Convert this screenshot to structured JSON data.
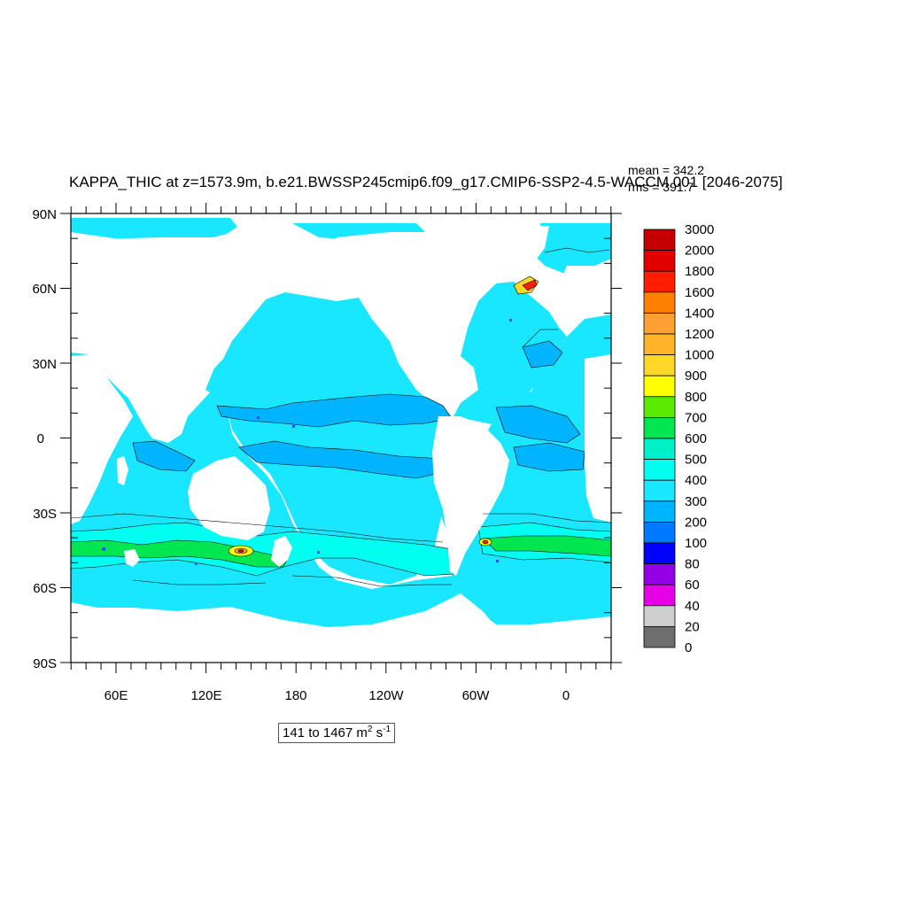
{
  "title": "KAPPA_THIC at z=1573.9m, b.e21.BWSSP245cmip6.f09_g17.CMIP6-SSP2-4.5-WACCM.001 [2046-2075]",
  "stats": {
    "mean": "mean = 342.2",
    "rms": "rms = 391.7"
  },
  "axes": {
    "lat_labels": [
      "90N",
      "60N",
      "30N",
      "0",
      "30S",
      "60S",
      "90S"
    ],
    "lon_labels": [
      "60E",
      "120E",
      "180",
      "120W",
      "60W",
      "0"
    ]
  },
  "range": {
    "text": "141 to 1467 m",
    "unit_sup_1": "2",
    "unit_mid": " s",
    "unit_sup_2": "-1"
  },
  "colorbar": {
    "labels": [
      "3000",
      "2000",
      "1800",
      "1600",
      "1400",
      "1200",
      "1000",
      "900",
      "800",
      "700",
      "600",
      "500",
      "400",
      "300",
      "200",
      "100",
      "80",
      "60",
      "40",
      "20",
      "0"
    ],
    "colors": [
      "#c40000",
      "#e10000",
      "#ff1e00",
      "#ff8000",
      "#ffa032",
      "#ffb428",
      "#ffd728",
      "#ffff00",
      "#5aeb00",
      "#00e650",
      "#00f0c8",
      "#00fff0",
      "#19e6ff",
      "#00b4ff",
      "#0078ff",
      "#0000ff",
      "#9600e6",
      "#e600e6",
      "#cfcfcf",
      "#6e6e6e"
    ]
  },
  "colors": {
    "ocean": "#19e6ff",
    "land": "#ffffff"
  }
}
